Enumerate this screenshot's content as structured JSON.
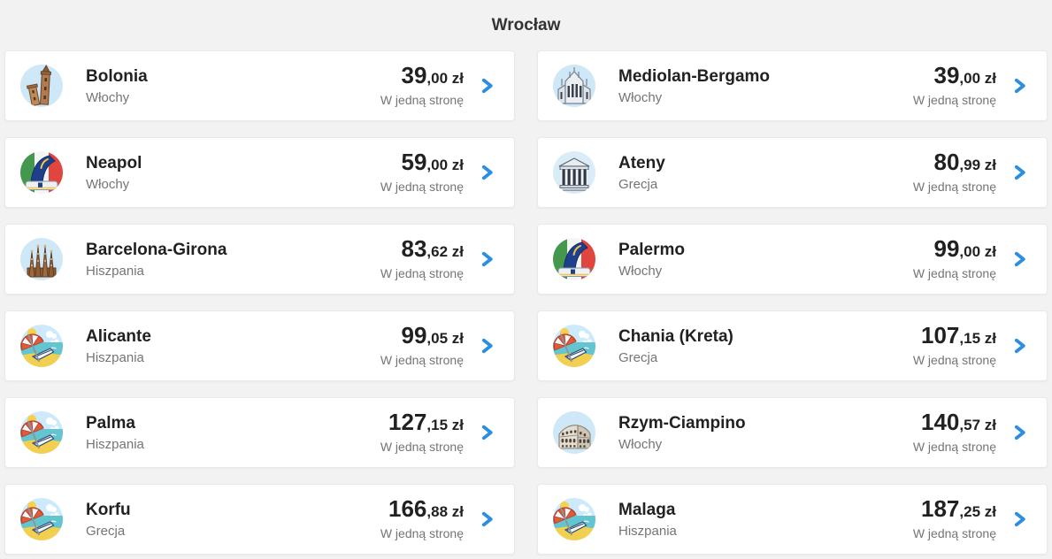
{
  "page": {
    "title": "Wrocław",
    "one_way_label": "W jedną stronę"
  },
  "colors": {
    "page_background": "#f2f2f2",
    "card_background": "#ffffff",
    "card_border": "#e9e9e9",
    "heading_text": "#333333",
    "destination_text": "#212121",
    "secondary_text": "#757575",
    "chevron_blue": "#2b8ee2",
    "icon_circle_blue": "#cfe8f8"
  },
  "cards": [
    {
      "destination": "Bolonia",
      "country": "Włochy",
      "price_main": "39",
      "price_rest": ",00 zł",
      "icon": "bologna-towers"
    },
    {
      "destination": "Mediolan-Bergamo",
      "country": "Włochy",
      "price_main": "39",
      "price_rest": ",00 zł",
      "icon": "milan-cathedral"
    },
    {
      "destination": "Neapol",
      "country": "Włochy",
      "price_main": "59",
      "price_rest": ",00 zł",
      "icon": "plane-tail-italy"
    },
    {
      "destination": "Ateny",
      "country": "Grecja",
      "price_main": "80",
      "price_rest": ",99 zł",
      "icon": "parthenon"
    },
    {
      "destination": "Barcelona-Girona",
      "country": "Hiszpania",
      "price_main": "83",
      "price_rest": ",62 zł",
      "icon": "sagrada-familia"
    },
    {
      "destination": "Palermo",
      "country": "Włochy",
      "price_main": "99",
      "price_rest": ",00 zł",
      "icon": "plane-tail-italy"
    },
    {
      "destination": "Alicante",
      "country": "Hiszpania",
      "price_main": "99",
      "price_rest": ",05 zł",
      "icon": "beach"
    },
    {
      "destination": "Chania (Kreta)",
      "country": "Grecja",
      "price_main": "107",
      "price_rest": ",15 zł",
      "icon": "beach"
    },
    {
      "destination": "Palma",
      "country": "Hiszpania",
      "price_main": "127",
      "price_rest": ",15 zł",
      "icon": "beach"
    },
    {
      "destination": "Rzym-Ciampino",
      "country": "Włochy",
      "price_main": "140",
      "price_rest": ",57 zł",
      "icon": "colosseum"
    },
    {
      "destination": "Korfu",
      "country": "Grecja",
      "price_main": "166",
      "price_rest": ",88 zł",
      "icon": "beach"
    },
    {
      "destination": "Malaga",
      "country": "Hiszpania",
      "price_main": "187",
      "price_rest": ",25 zł",
      "icon": "beach"
    }
  ]
}
